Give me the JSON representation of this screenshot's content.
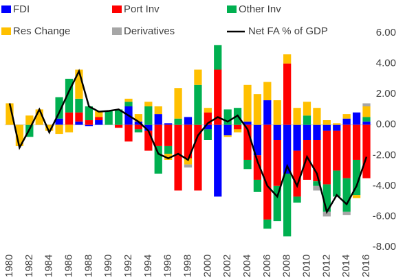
{
  "chart_data": {
    "type": "bar",
    "categories": [
      "1980",
      null,
      "1982",
      null,
      "1984",
      null,
      "1986",
      null,
      "1988",
      null,
      "1990",
      null,
      "1992",
      null,
      "1994",
      null,
      "1996",
      null,
      "1998",
      null,
      "2000",
      null,
      "2002",
      null,
      "2004",
      null,
      "2006",
      null,
      "2008",
      null,
      "2010",
      null,
      "2012",
      null,
      "2014",
      null,
      "2016"
    ],
    "series": [
      {
        "name": "FDI",
        "color": "#0000ff",
        "values": [
          0,
          0,
          0,
          0,
          0,
          0.4,
          0,
          0.2,
          -0.1,
          0.3,
          0,
          0,
          1.2,
          0.2,
          -0.4,
          0.7,
          0.1,
          0,
          0.5,
          0,
          -0.3,
          -4.7,
          -0.7,
          0,
          0.2,
          -2.0,
          1.6,
          -1.0,
          -3.2,
          -1.7,
          -1.0,
          -1.0,
          -0.4,
          -0.4,
          0.4,
          0.8,
          0.2
        ]
      },
      {
        "name": "Port Inv",
        "color": "#ff0000",
        "values": [
          0,
          0,
          0,
          0,
          0,
          0,
          0.8,
          0.6,
          0.3,
          0.2,
          0,
          -0.2,
          -1.1,
          -0.3,
          -1.3,
          -1.4,
          -1.4,
          -4.3,
          -2.2,
          -4.3,
          0.8,
          3.6,
          0,
          -0.3,
          -2.3,
          -1.6,
          -6.2,
          -3.0,
          4.0,
          -3.0,
          -2.6,
          -2.7,
          -3.5,
          -2.6,
          -3.5,
          -2.3,
          -3.5
        ]
      },
      {
        "name": "Other Inv",
        "color": "#00b050",
        "values": [
          0,
          0,
          -0.8,
          0,
          0,
          1.4,
          2.2,
          0.9,
          0.9,
          0,
          0.9,
          1.0,
          0.3,
          -0.2,
          1.2,
          -1.8,
          -0.5,
          0.4,
          0,
          2.6,
          -0.7,
          1.6,
          1.0,
          1.1,
          -0.6,
          -0.8,
          -0.6,
          -2.3,
          -4.1,
          -0.4,
          0.6,
          -0.3,
          -1.8,
          -1.7,
          -2.2,
          -2.3,
          0.3
        ]
      },
      {
        "name": "Res Change",
        "color": "#ffc000",
        "values": [
          1.4,
          -1.4,
          0.6,
          1.0,
          -0.4,
          -0.6,
          -0.5,
          1.9,
          0,
          0.4,
          0,
          0,
          0.2,
          0.5,
          0.3,
          0.5,
          -0.4,
          2.0,
          -0.4,
          1.0,
          0.3,
          0,
          -0.1,
          -0.2,
          2.4,
          2.0,
          1.2,
          1.6,
          0.6,
          1.1,
          0.9,
          1.1,
          0.3,
          0.1,
          0.3,
          -0.2,
          0.7
        ]
      },
      {
        "name": "Derivatives",
        "color": "#a6a6a6",
        "values": [
          0,
          0,
          0,
          0,
          0,
          0,
          0,
          0,
          0,
          0,
          0,
          0,
          0,
          0,
          0,
          0,
          0,
          0,
          -0.2,
          0,
          0,
          0,
          0,
          0,
          0,
          0,
          0,
          0,
          0,
          0,
          0,
          -0.3,
          -0.3,
          0,
          -0.2,
          0,
          0.2
        ]
      }
    ],
    "line": {
      "name": "Net FA % of GDP",
      "color": "#000000",
      "values": [
        1.4,
        -1.5,
        -0.3,
        1.0,
        -0.5,
        0.8,
        2.2,
        3.5,
        1.2,
        0.85,
        0.9,
        1.0,
        0.6,
        0.2,
        -0.4,
        -1.9,
        -2.2,
        -1.9,
        -2.3,
        -0.7,
        0.1,
        0.5,
        0.2,
        0.6,
        -0.3,
        -2.4,
        -4.0,
        -4.7,
        -2.7,
        -4.0,
        -2.1,
        -3.2,
        -5.7,
        -4.6,
        -5.2,
        -4.0,
        -2.1
      ]
    },
    "ylim": [
      -8,
      6
    ],
    "yticks": [
      {
        "value": -8,
        "label": "-8.00"
      },
      {
        "value": -6,
        "label": "-6.00"
      },
      {
        "value": -4,
        "label": "-4.00"
      },
      {
        "value": -2,
        "label": "-2.00"
      },
      {
        "value": 0,
        "label": "0.00"
      },
      {
        "value": 2,
        "label": "2.00"
      },
      {
        "value": 4,
        "label": "4.00"
      },
      {
        "value": 6,
        "label": "6.00"
      }
    ],
    "y_axis_side": "right",
    "legend": "top",
    "grid": false
  }
}
